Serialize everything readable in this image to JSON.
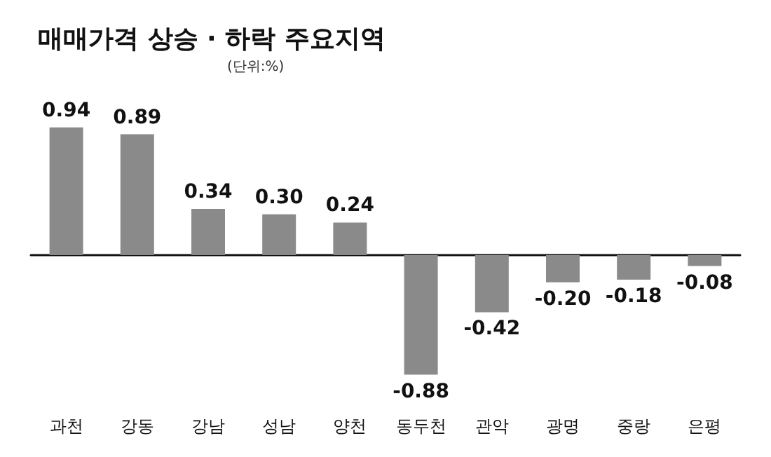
{
  "chart_data": {
    "type": "bar",
    "title": "매매가격 상승 · 하락 주요지역",
    "annotations": [
      "(단위:%)"
    ],
    "categories": [
      "과천",
      "강동",
      "강남",
      "성남",
      "양천",
      "동두천",
      "관악",
      "광명",
      "중랑",
      "은평"
    ],
    "values": [
      0.94,
      0.89,
      0.34,
      0.3,
      0.24,
      -0.88,
      -0.42,
      -0.2,
      -0.18,
      -0.08
    ],
    "value_labels": [
      "0.94",
      "0.89",
      "0.34",
      "0.30",
      "0.24",
      "-0.88",
      "-0.42",
      "-0.20",
      "-0.18",
      "-0.08"
    ],
    "color": "#8a8a8a"
  }
}
